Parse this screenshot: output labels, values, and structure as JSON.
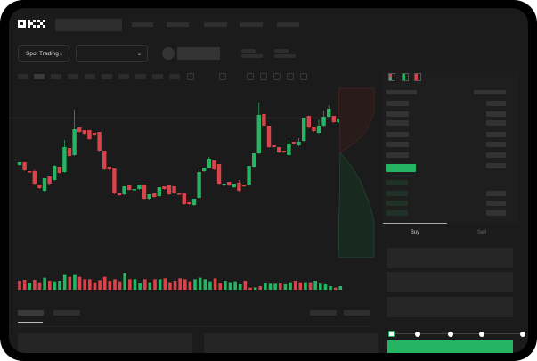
{
  "header": {
    "logo": "OKX"
  },
  "toolbar": {
    "market_dropdown": "Spot Trading",
    "pair_dropdown": ""
  },
  "trade": {
    "tabs": [
      {
        "label": "Buy",
        "active": true
      },
      {
        "label": "Sell",
        "active": false
      }
    ],
    "slider_percent": 0
  },
  "colors": {
    "up": "#25b562",
    "down": "#d9434a",
    "background": "#1b1b1b",
    "buy_button": "#25b562"
  },
  "chart_data": {
    "type": "candlestick",
    "ohlc": [
      [
        55,
        58,
        58,
        55
      ],
      [
        58,
        49,
        58,
        49
      ],
      [
        48,
        47,
        48,
        47
      ],
      [
        48,
        34,
        50,
        34
      ],
      [
        33,
        29,
        33,
        29
      ],
      [
        26,
        40,
        40,
        18
      ],
      [
        42,
        34,
        42,
        34
      ],
      [
        38,
        54,
        55,
        38
      ],
      [
        53,
        46,
        53,
        46
      ],
      [
        47,
        75,
        83,
        47
      ],
      [
        74,
        65,
        74,
        65
      ],
      [
        66,
        95,
        117,
        66
      ],
      [
        97,
        92,
        97,
        92
      ],
      [
        94,
        90,
        94,
        90
      ],
      [
        94,
        84,
        94,
        84
      ],
      [
        91,
        88,
        91,
        88
      ],
      [
        92,
        71,
        92,
        71
      ],
      [
        71,
        50,
        71,
        50
      ],
      [
        53,
        50,
        53,
        50
      ],
      [
        51,
        23,
        51,
        5
      ],
      [
        23,
        21,
        23,
        21
      ],
      [
        22,
        31,
        31,
        22
      ],
      [
        32,
        27,
        32,
        27
      ],
      [
        27,
        28,
        28,
        27
      ],
      [
        28,
        33,
        33,
        28
      ],
      [
        33,
        17,
        33,
        17
      ],
      [
        17,
        22,
        22,
        17
      ],
      [
        23,
        19,
        23,
        19
      ],
      [
        20,
        30,
        30,
        20
      ],
      [
        31,
        28,
        31,
        28
      ],
      [
        32,
        22,
        32,
        22
      ],
      [
        31,
        23,
        31,
        23
      ],
      [
        23,
        22,
        23,
        22
      ],
      [
        23,
        11,
        23,
        11
      ],
      [
        13,
        11,
        13,
        11
      ],
      [
        10,
        17,
        17,
        10
      ],
      [
        18,
        47,
        50,
        18
      ],
      [
        48,
        52,
        52,
        48
      ],
      [
        52,
        62,
        64,
        52
      ],
      [
        60,
        50,
        60,
        50
      ],
      [
        56,
        34,
        56,
        34
      ],
      [
        32,
        34,
        34,
        32
      ],
      [
        36,
        32,
        36,
        32
      ],
      [
        30,
        34,
        34,
        30
      ],
      [
        35,
        26,
        38,
        26
      ],
      [
        33,
        31,
        33,
        31
      ],
      [
        33,
        54,
        54,
        33
      ],
      [
        53,
        68,
        68,
        53
      ],
      [
        68,
        111,
        125,
        68
      ],
      [
        112,
        99,
        112,
        99
      ],
      [
        99,
        75,
        99,
        75
      ],
      [
        77,
        75,
        77,
        75
      ],
      [
        75,
        69,
        75,
        69
      ],
      [
        71,
        69,
        71,
        69
      ],
      [
        66,
        79,
        83,
        66
      ],
      [
        81,
        79,
        81,
        79
      ],
      [
        77,
        81,
        85,
        77
      ],
      [
        82,
        108,
        108,
        82
      ],
      [
        110,
        97,
        110,
        97
      ],
      [
        98,
        93,
        98,
        93
      ],
      [
        91,
        99,
        106,
        91
      ],
      [
        99,
        109,
        116,
        99
      ],
      [
        109,
        118,
        122,
        109
      ],
      [
        110,
        103,
        110,
        103
      ],
      [
        103,
        107,
        107,
        103
      ]
    ],
    "volume": [
      {
        "v": 30,
        "up": false
      },
      {
        "v": 33,
        "up": false
      },
      {
        "v": 22,
        "up": true
      },
      {
        "v": 33,
        "up": false
      },
      {
        "v": 25,
        "up": false
      },
      {
        "v": 40,
        "up": true
      },
      {
        "v": 30,
        "up": false
      },
      {
        "v": 28,
        "up": true
      },
      {
        "v": 30,
        "up": true
      },
      {
        "v": 52,
        "up": true
      },
      {
        "v": 43,
        "up": false
      },
      {
        "v": 52,
        "up": true
      },
      {
        "v": 43,
        "up": false
      },
      {
        "v": 35,
        "up": false
      },
      {
        "v": 35,
        "up": false
      },
      {
        "v": 25,
        "up": false
      },
      {
        "v": 32,
        "up": false
      },
      {
        "v": 43,
        "up": false
      },
      {
        "v": 30,
        "up": false
      },
      {
        "v": 35,
        "up": false
      },
      {
        "v": 28,
        "up": false
      },
      {
        "v": 57,
        "up": true
      },
      {
        "v": 35,
        "up": false
      },
      {
        "v": 35,
        "up": true
      },
      {
        "v": 22,
        "up": true
      },
      {
        "v": 35,
        "up": false
      },
      {
        "v": 25,
        "up": true
      },
      {
        "v": 35,
        "up": false
      },
      {
        "v": 35,
        "up": true
      },
      {
        "v": 38,
        "up": false
      },
      {
        "v": 25,
        "up": false
      },
      {
        "v": 30,
        "up": false
      },
      {
        "v": 38,
        "up": false
      },
      {
        "v": 35,
        "up": false
      },
      {
        "v": 28,
        "up": false
      },
      {
        "v": 35,
        "up": true
      },
      {
        "v": 40,
        "up": true
      },
      {
        "v": 35,
        "up": true
      },
      {
        "v": 28,
        "up": true
      },
      {
        "v": 38,
        "up": false
      },
      {
        "v": 22,
        "up": false
      },
      {
        "v": 30,
        "up": true
      },
      {
        "v": 25,
        "up": true
      },
      {
        "v": 28,
        "up": true
      },
      {
        "v": 18,
        "up": true
      },
      {
        "v": 30,
        "up": false
      },
      {
        "v": 7,
        "up": false
      },
      {
        "v": 8,
        "up": true
      },
      {
        "v": 12,
        "up": false
      },
      {
        "v": 22,
        "up": true
      },
      {
        "v": 20,
        "up": true
      },
      {
        "v": 20,
        "up": true
      },
      {
        "v": 22,
        "up": false
      },
      {
        "v": 18,
        "up": true
      },
      {
        "v": 25,
        "up": true
      },
      {
        "v": 30,
        "up": false
      },
      {
        "v": 25,
        "up": false
      },
      {
        "v": 25,
        "up": true
      },
      {
        "v": 25,
        "up": false
      },
      {
        "v": 30,
        "up": true
      },
      {
        "v": 20,
        "up": true
      },
      {
        "v": 18,
        "up": true
      },
      {
        "v": 12,
        "up": true
      },
      {
        "v": 7,
        "up": false
      },
      {
        "v": 12,
        "up": true
      }
    ]
  }
}
